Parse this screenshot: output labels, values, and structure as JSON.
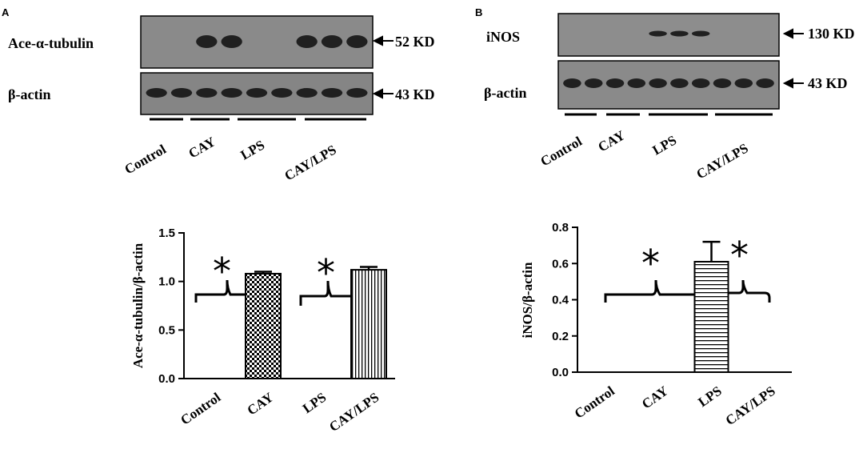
{
  "panels": [
    {
      "letter": "A",
      "blot": {
        "rows": [
          {
            "label": "Ace-α-tubulin",
            "kd": "52 KD",
            "bands": [
              0,
              0,
              1,
              1,
              0,
              0,
              1,
              1,
              1
            ]
          },
          {
            "label": "β-actin",
            "kd": "43 KD",
            "bands": [
              1,
              1,
              1,
              1,
              1,
              1,
              1,
              1,
              1
            ]
          }
        ],
        "groups": [
          "Control",
          "CAY",
          "LPS",
          "CAY/LPS"
        ]
      }
    },
    {
      "letter": "B",
      "blot": {
        "rows": [
          {
            "label": "iNOS",
            "kd": "130 KD",
            "bands": [
              0,
              0,
              0,
              0,
              1,
              1,
              1,
              0,
              0,
              0
            ]
          },
          {
            "label": "β-actin",
            "kd": "43 KD",
            "bands": [
              1,
              1,
              1,
              1,
              1,
              1,
              1,
              1,
              1,
              1
            ]
          }
        ],
        "groups": [
          "Control",
          "CAY",
          "LPS",
          "CAY/LPS"
        ]
      }
    }
  ],
  "chart_data": [
    {
      "type": "bar",
      "categories": [
        "Control",
        "CAY",
        "LPS",
        "CAY/LPS"
      ],
      "values": [
        0,
        1.08,
        0,
        1.12
      ],
      "errors": [
        0,
        0.02,
        0,
        0.03
      ],
      "patterns": [
        "none",
        "checker",
        "none",
        "vertical-stripes"
      ],
      "ylabel": "Ace-α-tubulin/β-actin",
      "yticks": [
        "0.0",
        "0.5",
        "1.0",
        "1.5"
      ],
      "ylim": [
        0,
        1.5
      ],
      "annotations": [
        "*",
        "*"
      ]
    },
    {
      "type": "bar",
      "categories": [
        "Control",
        "CAY",
        "LPS",
        "CAY/LPS"
      ],
      "values": [
        0,
        0,
        0.61,
        0
      ],
      "errors": [
        0,
        0,
        0.11,
        0
      ],
      "patterns": [
        "none",
        "none",
        "horizontal-stripes",
        "none"
      ],
      "ylabel": "iNOS/β-actin",
      "yticks": [
        "0.0",
        "0.2",
        "0.4",
        "0.6",
        "0.8"
      ],
      "ylim": [
        0,
        0.8
      ],
      "annotations": [
        "*",
        "*"
      ]
    }
  ]
}
